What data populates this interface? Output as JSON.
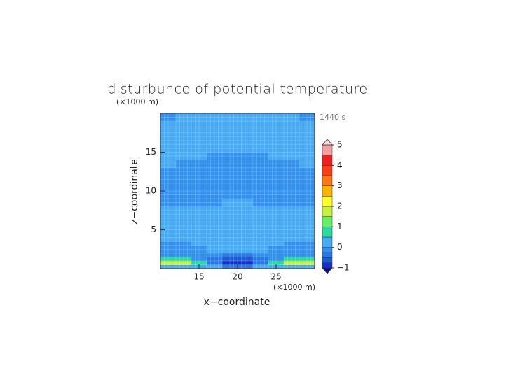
{
  "chart_data": {
    "type": "contour",
    "title": "disturbunce of potential temperature",
    "time_label": "1440 s",
    "xlabel": "x−coordinate",
    "ylabel": "z−coordinate",
    "xunit": "(×1000 m)",
    "yunit": "(×1000 m)",
    "xlim": [
      10,
      30
    ],
    "ylim": [
      0,
      20
    ],
    "xticks": [
      15,
      20,
      25
    ],
    "yticks": [
      5,
      10,
      15
    ],
    "xbins": [
      10,
      12,
      14,
      16,
      18,
      20,
      22,
      24,
      26,
      28,
      30
    ],
    "ybins": [
      0,
      0.5,
      1,
      1.5,
      2,
      2.5,
      3,
      3.5,
      4,
      5,
      6,
      7,
      8,
      9,
      10,
      11,
      12,
      13,
      14,
      15,
      16,
      17,
      18,
      19,
      20
    ],
    "values": [
      [
        0.3,
        0.3,
        0.3,
        0.2,
        -0.3,
        -0.3,
        0.2,
        0.3,
        0.3,
        0.3
      ],
      [
        1.7,
        1.7,
        0.7,
        -0.5,
        -0.8,
        -0.8,
        -0.5,
        0.7,
        1.7,
        1.7
      ],
      [
        0.7,
        0.7,
        -0.1,
        -0.3,
        -0.6,
        -0.6,
        -0.3,
        -0.1,
        0.7,
        0.7
      ],
      [
        -0.1,
        -0.1,
        -0.1,
        -0.1,
        -0.3,
        -0.3,
        -0.1,
        -0.1,
        -0.1,
        -0.1
      ],
      [
        -0.1,
        -0.1,
        -0.1,
        0.2,
        0.2,
        0.2,
        0.2,
        -0.1,
        -0.1,
        -0.1
      ],
      [
        -0.1,
        -0.1,
        -0.1,
        0.2,
        0.2,
        0.2,
        0.2,
        -0.1,
        -0.1,
        -0.1
      ],
      [
        -0.1,
        -0.1,
        0.2,
        0.2,
        0.2,
        0.2,
        0.2,
        0.2,
        -0.1,
        -0.1
      ],
      [
        0.2,
        0.2,
        0.2,
        0.2,
        0.2,
        0.2,
        0.2,
        0.2,
        0.2,
        0.2
      ],
      [
        0.2,
        0.2,
        0.2,
        0.2,
        0.2,
        0.2,
        0.2,
        0.2,
        0.2,
        0.2
      ],
      [
        0.2,
        0.2,
        0.2,
        0.2,
        0.2,
        0.2,
        0.2,
        0.2,
        0.2,
        0.2
      ],
      [
        0.2,
        0.2,
        0.2,
        0.2,
        0.2,
        0.2,
        0.2,
        0.2,
        0.2,
        0.2
      ],
      [
        0.2,
        0.2,
        0.2,
        0.2,
        0.2,
        0.2,
        0.2,
        0.2,
        0.2,
        0.2
      ],
      [
        -0.1,
        -0.1,
        -0.1,
        -0.1,
        0.2,
        0.2,
        -0.1,
        -0.1,
        -0.1,
        -0.1
      ],
      [
        -0.1,
        -0.1,
        -0.1,
        -0.1,
        -0.1,
        -0.1,
        -0.1,
        -0.1,
        -0.1,
        -0.1
      ],
      [
        -0.1,
        -0.1,
        -0.1,
        -0.1,
        -0.1,
        -0.1,
        -0.1,
        -0.1,
        -0.1,
        -0.1
      ],
      [
        -0.1,
        -0.1,
        -0.1,
        -0.1,
        -0.1,
        -0.1,
        -0.1,
        -0.1,
        -0.1,
        -0.1
      ],
      [
        -0.1,
        -0.1,
        -0.1,
        -0.1,
        -0.1,
        -0.1,
        -0.1,
        -0.1,
        -0.1,
        -0.1
      ],
      [
        0.2,
        -0.1,
        -0.1,
        -0.1,
        -0.1,
        -0.1,
        -0.1,
        -0.1,
        -0.1,
        0.2
      ],
      [
        0.2,
        0.2,
        0.2,
        -0.1,
        -0.1,
        -0.1,
        -0.1,
        0.2,
        0.2,
        0.2
      ],
      [
        0.2,
        0.2,
        0.2,
        0.2,
        0.2,
        0.2,
        0.2,
        0.2,
        0.2,
        0.2
      ],
      [
        0.2,
        0.2,
        0.2,
        0.2,
        0.2,
        0.2,
        0.2,
        0.2,
        0.2,
        0.2
      ],
      [
        0.2,
        0.2,
        0.2,
        0.2,
        0.2,
        0.2,
        0.2,
        0.2,
        0.2,
        0.2
      ],
      [
        0.2,
        0.2,
        0.2,
        0.2,
        0.2,
        0.2,
        0.2,
        0.2,
        0.2,
        0.2
      ],
      [
        -0.1,
        0.2,
        0.2,
        0.2,
        0.2,
        0.2,
        0.2,
        0.2,
        0.2,
        -0.1
      ]
    ],
    "levels": [
      -1,
      -0.75,
      -0.5,
      -0.25,
      0,
      0.5,
      1,
      1.5,
      2,
      2.5,
      3,
      3.5,
      4,
      4.5,
      5
    ],
    "colors": [
      "#1432c8",
      "#1e5ad7",
      "#2878e6",
      "#3291ee",
      "#46aaf5",
      "#28dca0",
      "#64f064",
      "#c8f03c",
      "#ffff28",
      "#ffb400",
      "#ff7814",
      "#ff3c14",
      "#f01e1e",
      "#f5a0a0"
    ],
    "under_color": "#0a0a96",
    "over_color": "#fadcdc",
    "colorbar_ticks": [
      {
        "value": -1,
        "label": "−1"
      },
      0,
      1,
      2,
      3,
      4,
      5
    ]
  }
}
